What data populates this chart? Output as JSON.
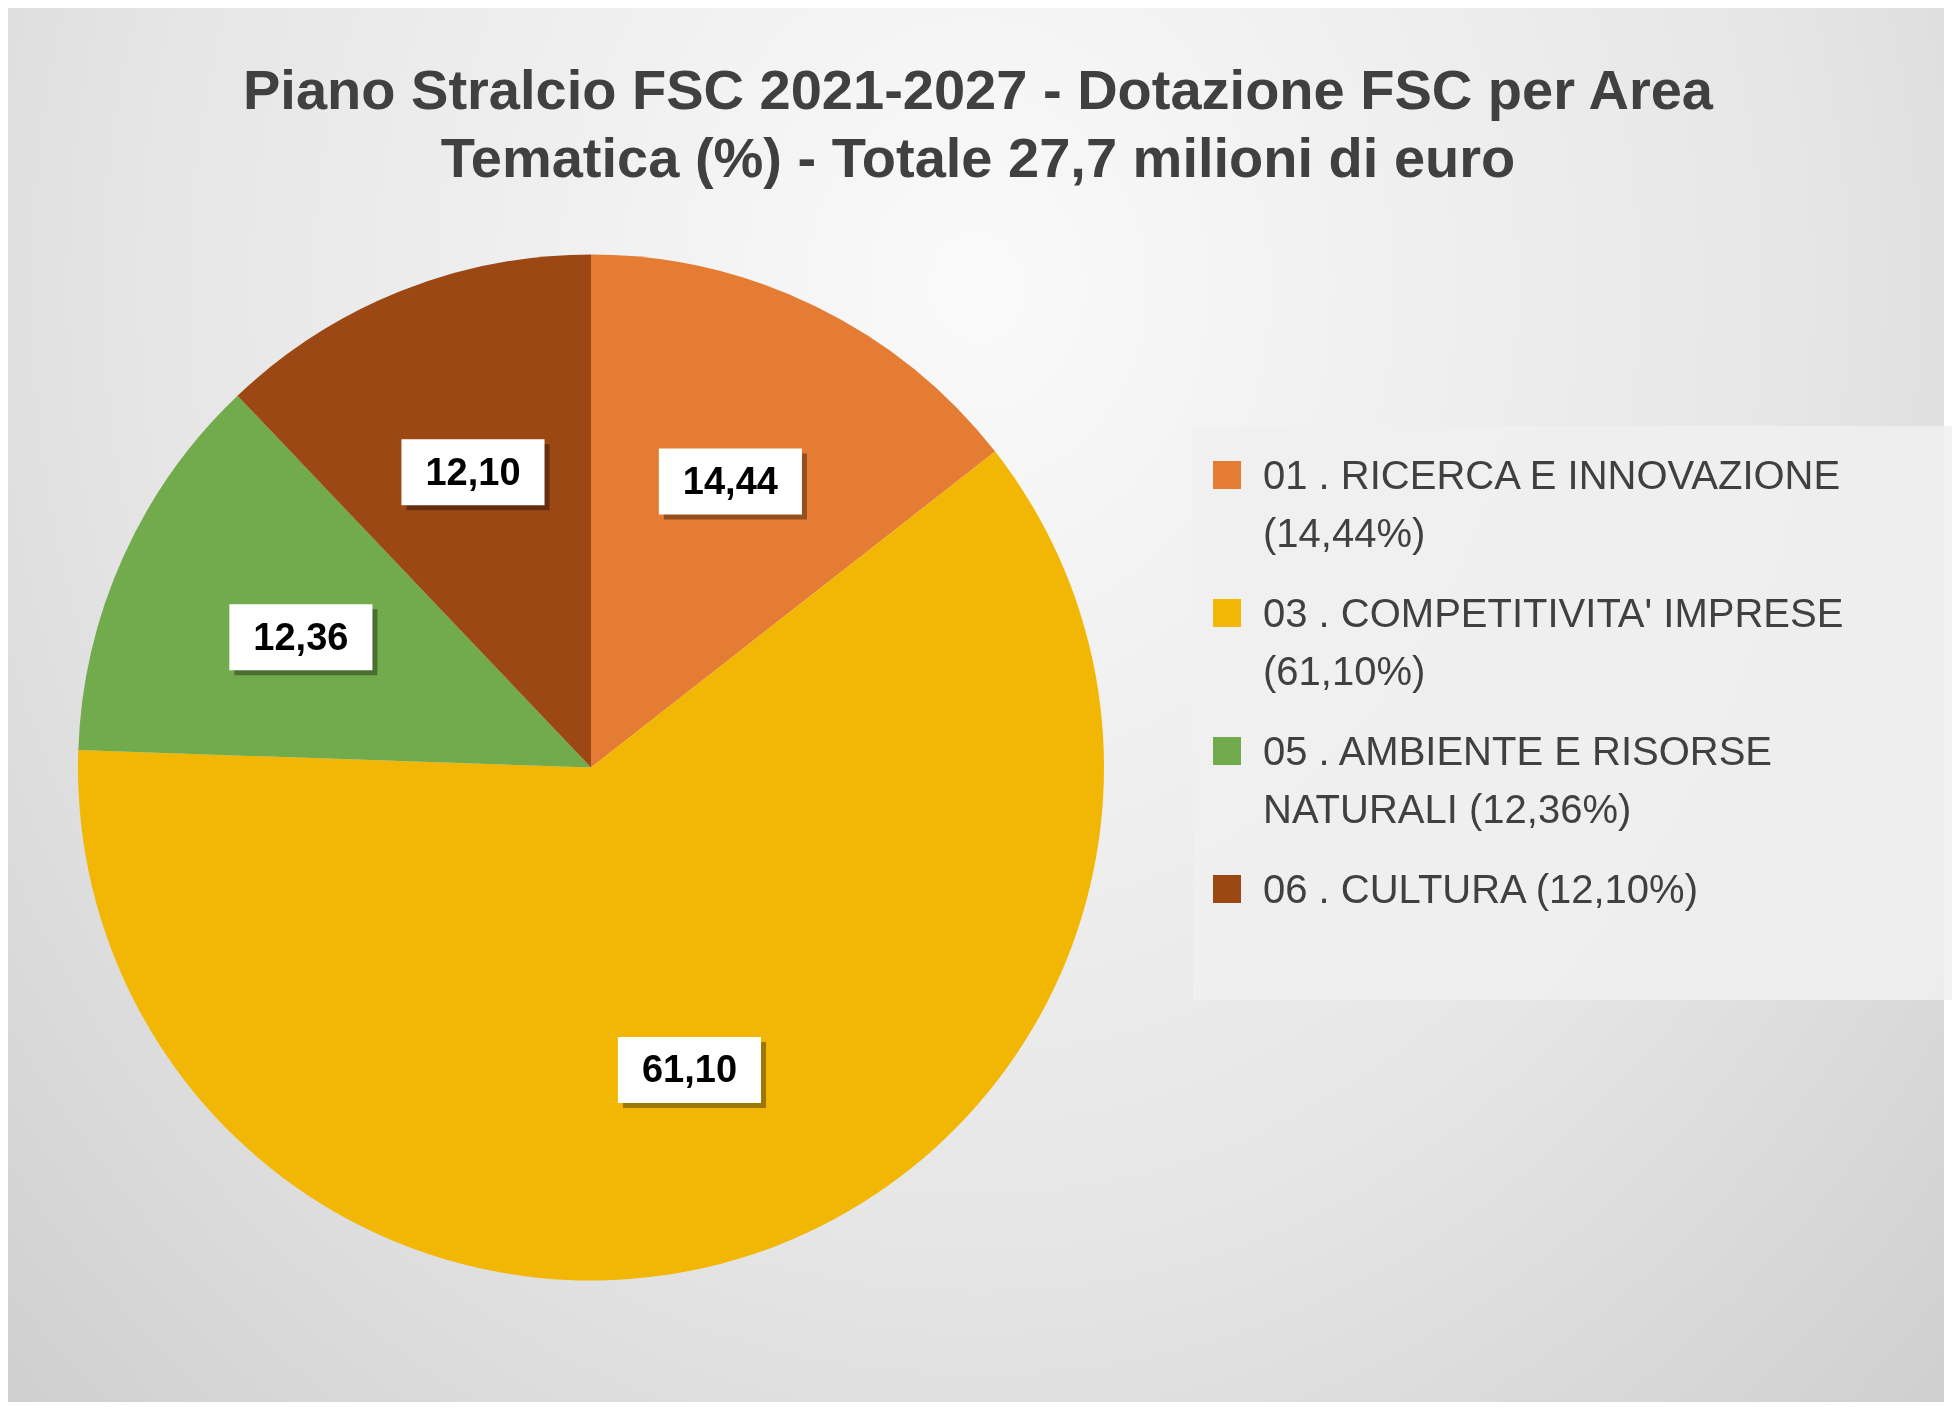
{
  "chart_data": {
    "type": "pie",
    "title": "Piano Stralcio FSC 2021-2027 - Dotazione FSC per Area Tematica (%) - Totale 27,7 milioni di euro",
    "categories": [
      "01 . RICERCA E INNOVAZIONE (14,44%)",
      "03 . COMPETITIVITA' IMPRESE (61,10%)",
      "05 . AMBIENTE E RISORSE NATURALI (12,36%)",
      "06 . CULTURA (12,10%)"
    ],
    "values": [
      14.44,
      61.1,
      12.36,
      12.1
    ],
    "colors": [
      "#e57c33",
      "#f2b705",
      "#72ab4b",
      "#9c4815"
    ],
    "value_labels": [
      "14,44",
      "61,10",
      "12,36",
      "12,10"
    ],
    "legend": "right"
  }
}
